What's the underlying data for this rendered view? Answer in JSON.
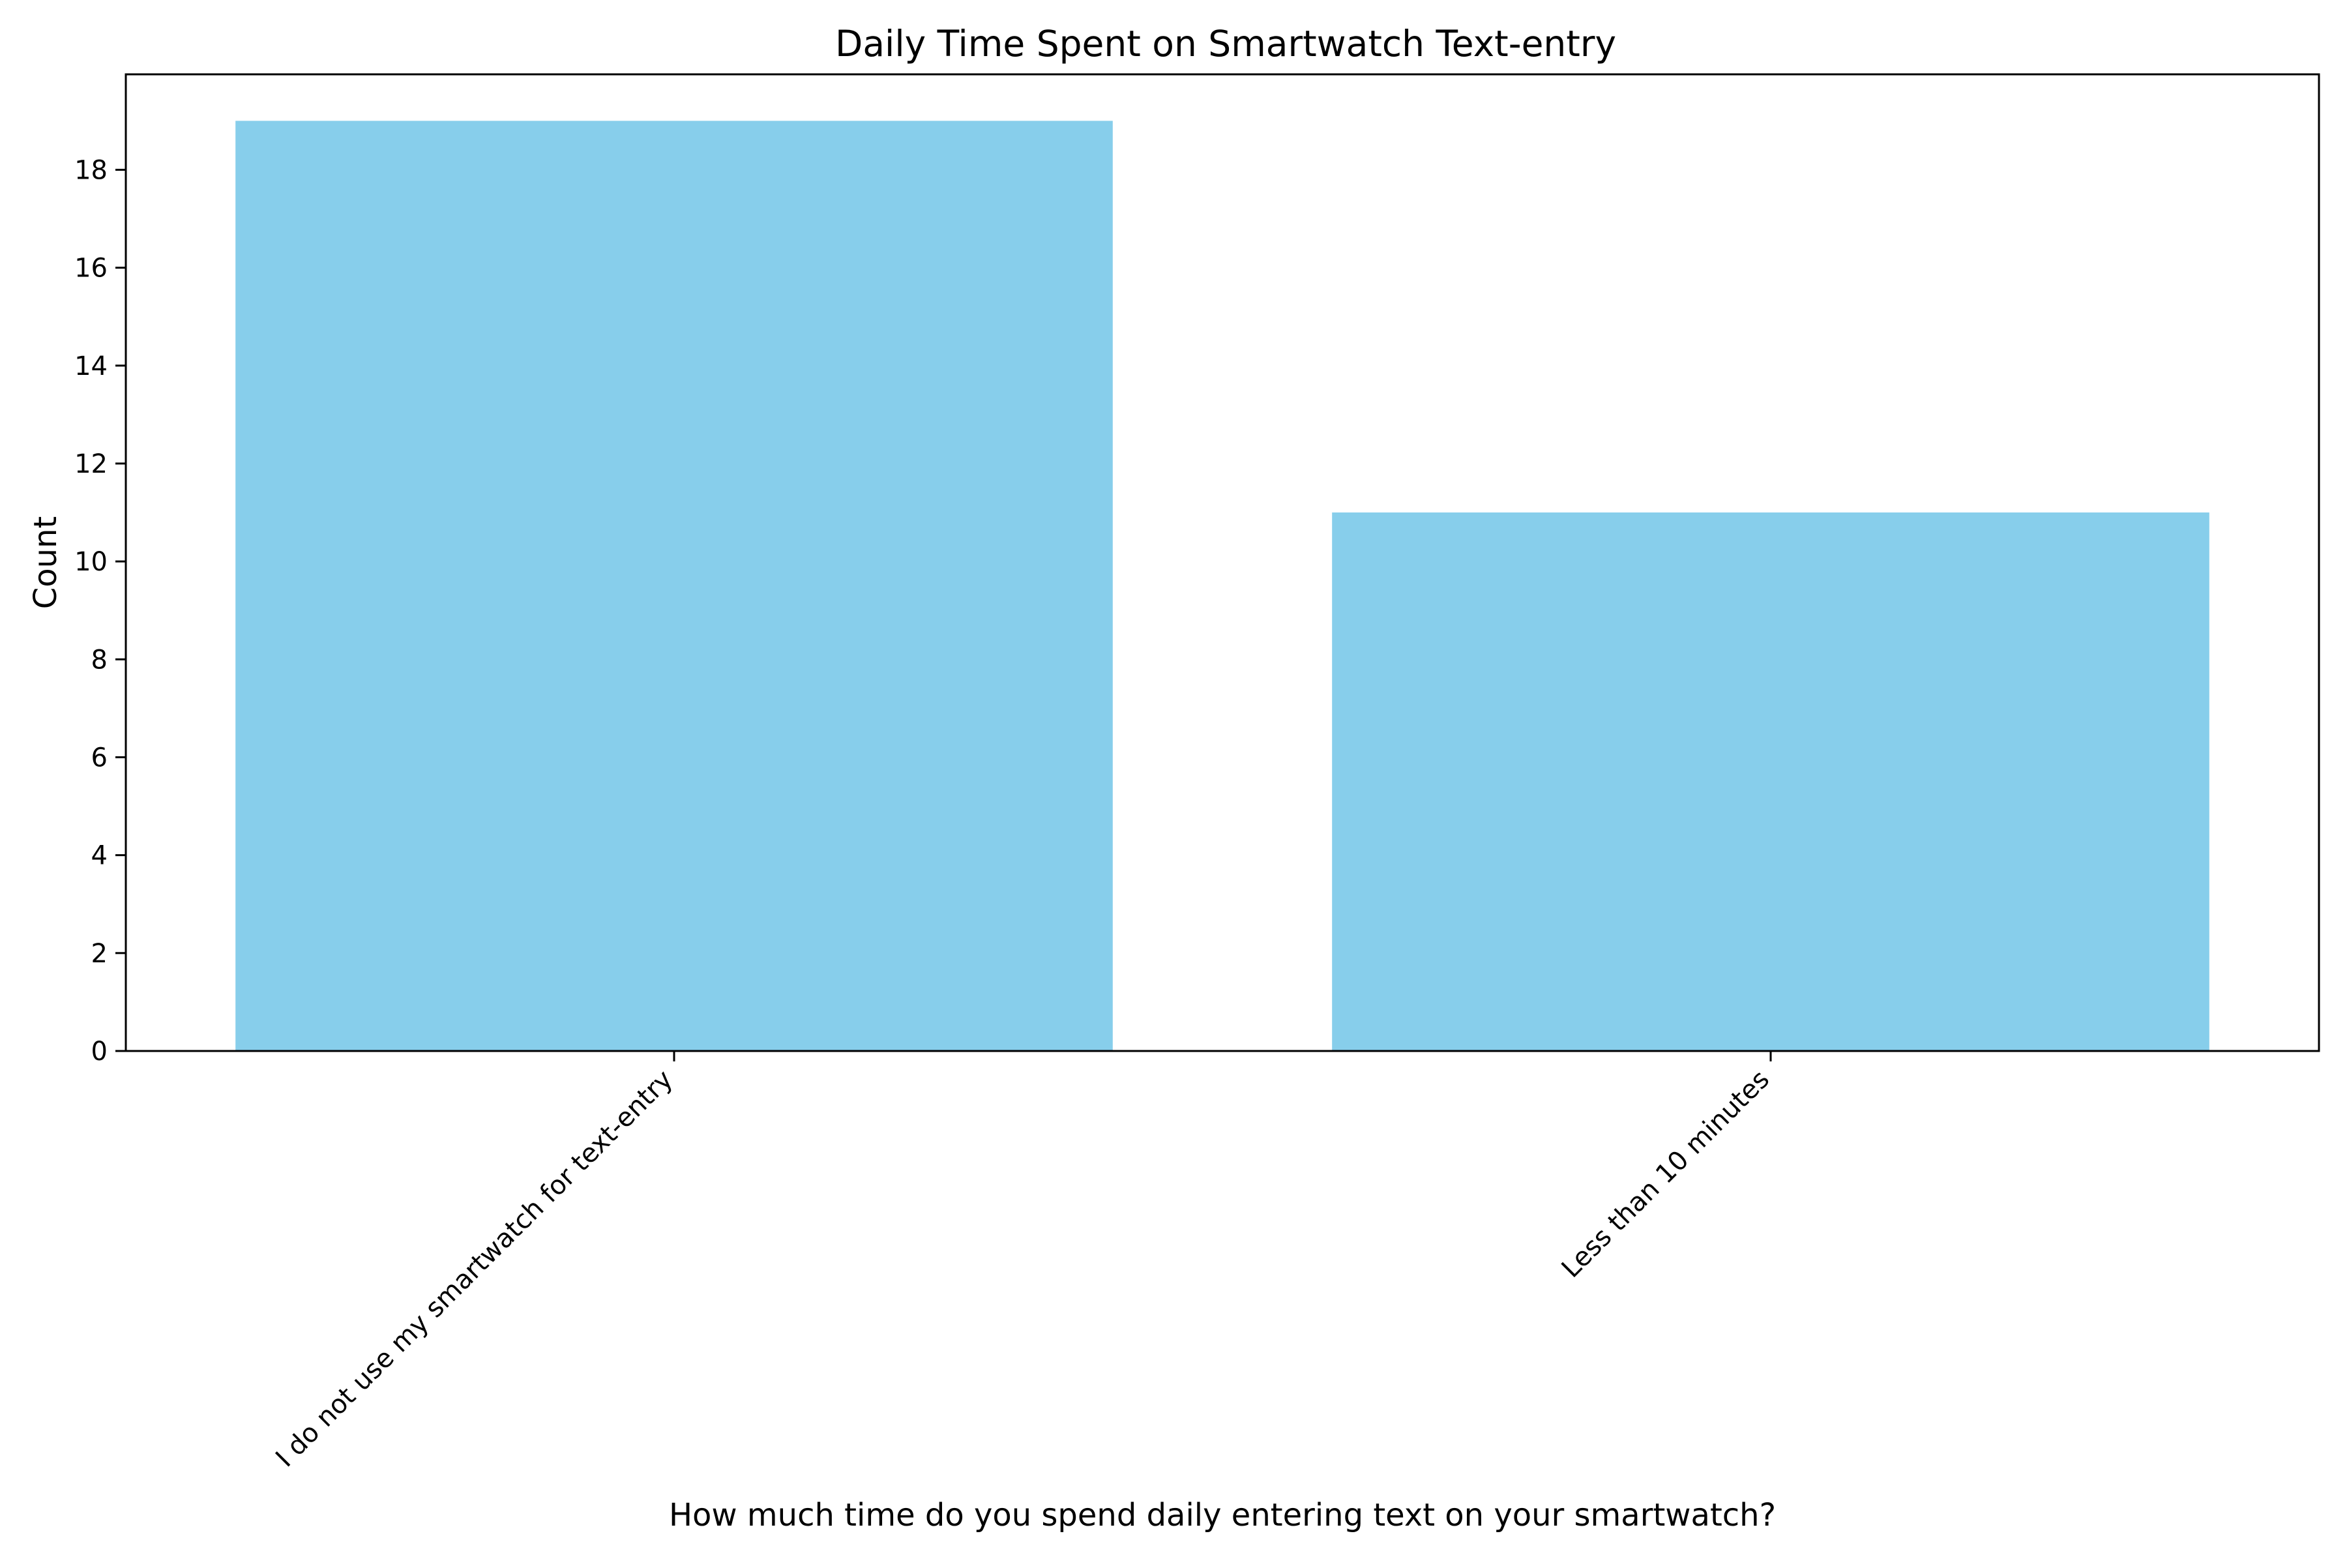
{
  "chart_data": {
    "type": "bar",
    "title": "Daily Time Spent on Smartwatch Text-entry",
    "xlabel": "How much time do you spend daily entering text on your smartwatch?",
    "ylabel": "Count",
    "categories": [
      "I do not use my smartwatch for text-entry",
      "Less than 10 minutes"
    ],
    "values": [
      19,
      11
    ],
    "ylim": [
      0,
      19.95
    ],
    "yticks": [
      0,
      2,
      4,
      6,
      8,
      10,
      12,
      14,
      16,
      18
    ],
    "grid": false,
    "legend": "none",
    "bar_color": "#87CEEB",
    "axis_color": "#000000"
  }
}
